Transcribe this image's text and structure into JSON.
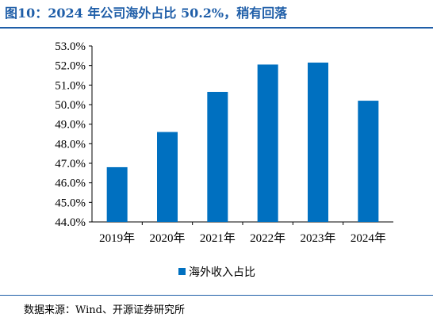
{
  "figure": {
    "title": "图10：2024 年公司海外占比 50.2%，稍有回落",
    "source": "数据来源：Wind、开源证券研究所"
  },
  "colors": {
    "title": "#1f5ea8",
    "bar": "#0070c0",
    "axis": "#000000"
  },
  "chart_data": {
    "type": "bar",
    "title": "",
    "xlabel": "",
    "ylabel": "",
    "categories": [
      "2019年",
      "2020年",
      "2021年",
      "2022年",
      "2023年",
      "2024年"
    ],
    "series": [
      {
        "name": "海外收入占比",
        "values": [
          46.8,
          48.6,
          50.65,
          52.05,
          52.15,
          50.2
        ]
      }
    ],
    "ylim": [
      44.0,
      53.0
    ],
    "yticks": [
      44.0,
      45.0,
      46.0,
      47.0,
      48.0,
      49.0,
      50.0,
      51.0,
      52.0,
      53.0
    ],
    "ytick_format": "percent_1dp",
    "grid": false,
    "legend_position": "bottom-center"
  }
}
